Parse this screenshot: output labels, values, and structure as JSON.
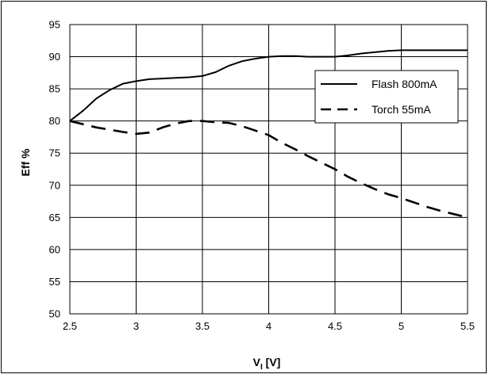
{
  "chart_data": {
    "type": "line",
    "title": "",
    "xlabel_main": "V",
    "xlabel_sub": "I",
    "xlabel_unit": " [V]",
    "ylabel": "Eff %",
    "xlim": [
      2.5,
      5.5
    ],
    "ylim": [
      50,
      95
    ],
    "x_ticks": [
      2.5,
      3,
      3.5,
      4,
      4.5,
      5,
      5.5
    ],
    "x_tick_labels": [
      "2.5",
      "3",
      "3.5",
      "4",
      "4.5",
      "5",
      "5.5"
    ],
    "y_ticks": [
      50,
      55,
      60,
      65,
      70,
      75,
      80,
      85,
      90,
      95
    ],
    "y_tick_labels": [
      "50",
      "55",
      "60",
      "65",
      "70",
      "75",
      "80",
      "85",
      "90",
      "95"
    ],
    "grid": true,
    "legend_position": "right",
    "series": [
      {
        "name": "Flash 800mA",
        "style": "solid",
        "color": "#000000",
        "x": [
          2.5,
          2.6,
          2.7,
          2.8,
          2.9,
          3.0,
          3.1,
          3.2,
          3.3,
          3.4,
          3.5,
          3.6,
          3.7,
          3.8,
          3.9,
          4.0,
          4.1,
          4.2,
          4.3,
          4.4,
          4.5,
          4.6,
          4.7,
          4.8,
          4.9,
          5.0,
          5.1,
          5.2,
          5.3,
          5.4,
          5.5
        ],
        "y": [
          80.0,
          81.6,
          83.5,
          84.8,
          85.8,
          86.2,
          86.5,
          86.6,
          86.7,
          86.8,
          87.0,
          87.6,
          88.6,
          89.3,
          89.7,
          90.0,
          90.1,
          90.1,
          90.0,
          90.0,
          90.0,
          90.2,
          90.5,
          90.7,
          90.9,
          91.0,
          91.0,
          91.0,
          91.0,
          91.0,
          91.0
        ]
      },
      {
        "name": "Torch 55mA",
        "style": "dashed",
        "color": "#000000",
        "x": [
          2.5,
          2.7,
          2.9,
          3.0,
          3.1,
          3.2,
          3.3,
          3.4,
          3.5,
          3.6,
          3.7,
          3.8,
          3.9,
          4.0,
          4.1,
          4.2,
          4.3,
          4.4,
          4.5,
          4.6,
          4.7,
          4.8,
          4.9,
          5.0,
          5.1,
          5.2,
          5.3,
          5.4,
          5.5
        ],
        "y": [
          80.0,
          79.0,
          78.3,
          78.0,
          78.2,
          79.0,
          79.6,
          80.0,
          80.0,
          79.8,
          79.7,
          79.2,
          78.5,
          77.8,
          76.6,
          75.6,
          74.5,
          73.5,
          72.5,
          71.3,
          70.3,
          69.4,
          68.6,
          68.0,
          67.3,
          66.6,
          66.0,
          65.5,
          65.0
        ]
      }
    ]
  }
}
